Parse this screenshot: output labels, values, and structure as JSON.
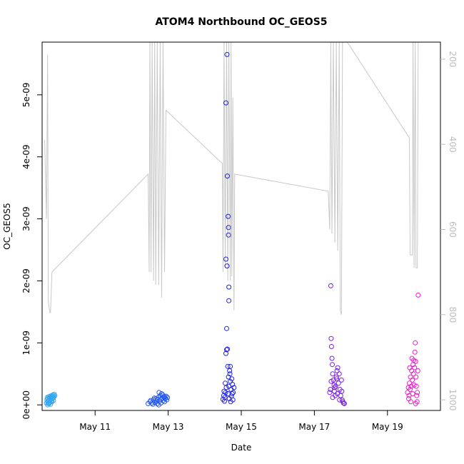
{
  "chart_data": {
    "type": "scatter",
    "title": "ATOM4 Northbound OC_GEOS5",
    "xlabel": "Date",
    "ylabel": "OC_GEOS5",
    "xlim": [
      9.55,
      20.45
    ],
    "ylim": [
      -9e-11,
      5.85e-09
    ],
    "right_ylim": [
      1025,
      160
    ],
    "x_ticks": [
      {
        "value": 11,
        "label": "May 11"
      },
      {
        "value": 13,
        "label": "May 13"
      },
      {
        "value": 15,
        "label": "May 15"
      },
      {
        "value": 17,
        "label": "May 17"
      },
      {
        "value": 19,
        "label": "May 19"
      }
    ],
    "y_ticks": [
      {
        "value": 0,
        "label": "0e+00"
      },
      {
        "value": 1e-09,
        "label": "1e-09"
      },
      {
        "value": 2e-09,
        "label": "2e-09"
      },
      {
        "value": 3e-09,
        "label": "3e-09"
      },
      {
        "value": 4e-09,
        "label": "4e-09"
      },
      {
        "value": 5e-09,
        "label": "5e-09"
      }
    ],
    "right_y_ticks": [
      {
        "value": 200,
        "label": "200"
      },
      {
        "value": 400,
        "label": "400"
      },
      {
        "value": 600,
        "label": "600"
      },
      {
        "value": 800,
        "label": "800"
      },
      {
        "value": 1000,
        "label": "1000"
      }
    ],
    "grid": false,
    "colors": {
      "flight1": "#33a6ee",
      "flight2": "#1f55f5",
      "flight3": "#2020ea",
      "flight4": "#7a1ee8",
      "flight5": "#ee1ec8",
      "pressure": "#c8c8c8"
    },
    "series": [
      {
        "color": "flight1",
        "points": [
          [
            9.67,
            3e-11
          ],
          [
            9.68,
            8e-11
          ],
          [
            9.69,
            1.2e-10
          ],
          [
            9.7,
            5e-11
          ],
          [
            9.71,
            1e-10
          ],
          [
            9.72,
            2e-11
          ],
          [
            9.73,
            1.3e-10
          ],
          [
            9.74,
            7e-11
          ],
          [
            9.75,
            1.1e-10
          ],
          [
            9.76,
            4e-11
          ],
          [
            9.77,
            1.4e-10
          ],
          [
            9.78,
            9e-11
          ],
          [
            9.79,
            1.2e-10
          ],
          [
            9.8,
            6e-11
          ],
          [
            9.81,
            1.5e-10
          ],
          [
            9.82,
            1e-10
          ],
          [
            9.83,
            1.3e-10
          ],
          [
            9.84,
            1.6e-10
          ],
          [
            9.85,
            1.1e-10
          ],
          [
            9.86,
            7e-11
          ],
          [
            9.87,
            1.4e-10
          ],
          [
            9.88,
            1.7e-10
          ],
          [
            9.7,
            0.0
          ],
          [
            9.74,
            2e-11
          ],
          [
            9.78,
            1e-11
          ],
          [
            9.82,
            5e-11
          ],
          [
            9.86,
            1.2e-10
          ],
          [
            9.9,
            1.5e-10
          ]
        ]
      },
      {
        "color": "flight2",
        "points": [
          [
            12.45,
            2e-11
          ],
          [
            12.5,
            5e-11
          ],
          [
            12.55,
            3e-11
          ],
          [
            12.6,
            8e-11
          ],
          [
            12.63,
            4e-11
          ],
          [
            12.66,
            1e-10
          ],
          [
            12.7,
            2e-11
          ],
          [
            12.73,
            1.2e-10
          ],
          [
            12.76,
            6e-11
          ],
          [
            12.78,
            1.5e-10
          ],
          [
            12.8,
            9e-11
          ],
          [
            12.82,
            1.8e-10
          ],
          [
            12.84,
            1.1e-10
          ],
          [
            12.86,
            7e-11
          ],
          [
            12.88,
            1.3e-10
          ],
          [
            12.9,
            5e-11
          ],
          [
            12.92,
            1e-10
          ],
          [
            12.94,
            1.4e-10
          ],
          [
            12.96,
            8e-11
          ],
          [
            12.98,
            1.2e-10
          ],
          [
            12.52,
            7e-11
          ],
          [
            12.58,
            1e-11
          ],
          [
            12.68,
            6e-11
          ],
          [
            12.74,
            0.0
          ],
          [
            12.8,
            3e-11
          ],
          [
            12.85,
            1.6e-10
          ],
          [
            12.75,
            2e-10
          ],
          [
            12.9,
            1.3e-10
          ],
          [
            12.7,
            9e-11
          ],
          [
            12.62,
            1.1e-10
          ]
        ]
      },
      {
        "color": "flight3",
        "points": [
          [
            14.5,
            9e-11
          ],
          [
            14.52,
            1.5e-10
          ],
          [
            14.54,
            6e-11
          ],
          [
            14.55,
            1.2e-10
          ],
          [
            14.57,
            2e-10
          ],
          [
            14.58,
            8.3e-10
          ],
          [
            14.6,
            8.9e-10
          ],
          [
            14.62,
            9e-10
          ],
          [
            14.6,
            1.23e-09
          ],
          [
            14.63,
            6.2e-10
          ],
          [
            14.65,
            4.5e-10
          ],
          [
            14.66,
            3e-10
          ],
          [
            14.68,
            5.5e-10
          ],
          [
            14.7,
            6.2e-10
          ],
          [
            14.7,
            3.8e-10
          ],
          [
            14.72,
            2.5e-10
          ],
          [
            14.74,
            4.2e-10
          ],
          [
            14.75,
            1.8e-10
          ],
          [
            14.76,
            3.3e-10
          ],
          [
            14.78,
            2e-10
          ],
          [
            14.8,
            2.8e-10
          ],
          [
            14.56,
            3.5e-10
          ],
          [
            14.59,
            2.8e-10
          ],
          [
            14.64,
            1.8e-10
          ],
          [
            14.67,
            1e-10
          ],
          [
            14.71,
            5e-11
          ],
          [
            14.73,
            1.4e-10
          ],
          [
            14.77,
            8e-11
          ],
          [
            14.58,
            4.87e-09
          ],
          [
            14.61,
            5.65e-09
          ],
          [
            14.62,
            3.69e-09
          ],
          [
            14.64,
            3.04e-09
          ],
          [
            14.65,
            2.86e-09
          ],
          [
            14.65,
            2.74e-09
          ],
          [
            14.58,
            2.35e-09
          ],
          [
            14.61,
            2.24e-09
          ],
          [
            14.66,
            1.9e-09
          ],
          [
            14.66,
            1.68e-09
          ],
          [
            14.53,
            2.2e-10
          ],
          [
            14.69,
            5e-10
          ]
        ]
      },
      {
        "color": "flight4",
        "points": [
          [
            17.42,
            2e-10
          ],
          [
            17.44,
            2.5e-10
          ],
          [
            17.45,
            1.92e-09
          ],
          [
            17.46,
            1.07e-09
          ],
          [
            17.47,
            9.4e-10
          ],
          [
            17.48,
            7.5e-10
          ],
          [
            17.49,
            6.5e-10
          ],
          [
            17.5,
            5e-10
          ],
          [
            17.52,
            4e-10
          ],
          [
            17.54,
            3.2e-10
          ],
          [
            17.55,
            2.2e-10
          ],
          [
            17.57,
            1.5e-10
          ],
          [
            17.58,
            3e-10
          ],
          [
            17.6,
            4.5e-10
          ],
          [
            17.62,
            5.5e-10
          ],
          [
            17.64,
            6e-10
          ],
          [
            17.66,
            3.5e-10
          ],
          [
            17.68,
            5e-10
          ],
          [
            17.7,
            2.5e-10
          ],
          [
            17.72,
            1.5e-10
          ],
          [
            17.74,
            4e-10
          ],
          [
            17.76,
            8e-11
          ],
          [
            17.78,
            5e-11
          ],
          [
            17.8,
            3e-11
          ],
          [
            17.82,
            2e-11
          ],
          [
            17.5,
            1.2e-10
          ],
          [
            17.56,
            2.8e-10
          ],
          [
            17.63,
            1.8e-10
          ],
          [
            17.69,
            8e-11
          ],
          [
            17.75,
            2.2e-10
          ],
          [
            17.46,
            3.8e-10
          ],
          [
            17.61,
            4.2e-10
          ]
        ]
      },
      {
        "color": "flight5",
        "points": [
          [
            19.55,
            2e-10
          ],
          [
            19.57,
            2.8e-10
          ],
          [
            19.59,
            1.5e-10
          ],
          [
            19.6,
            3.5e-10
          ],
          [
            19.62,
            2.5e-10
          ],
          [
            19.63,
            4.5e-10
          ],
          [
            19.65,
            3e-10
          ],
          [
            19.66,
            5.5e-10
          ],
          [
            19.68,
            4e-10
          ],
          [
            19.7,
            6.5e-10
          ],
          [
            19.71,
            5e-10
          ],
          [
            19.72,
            7.2e-10
          ],
          [
            19.74,
            6e-10
          ],
          [
            19.75,
            8.5e-10
          ],
          [
            19.76,
            1e-09
          ],
          [
            19.77,
            7e-10
          ],
          [
            19.78,
            4.5e-10
          ],
          [
            19.79,
            3e-10
          ],
          [
            19.8,
            1.5e-10
          ],
          [
            19.81,
            5e-11
          ],
          [
            19.82,
            2e-10
          ],
          [
            19.83,
            5.5e-10
          ],
          [
            19.84,
            1.77e-09
          ],
          [
            19.58,
            1e-10
          ],
          [
            19.64,
            5e-11
          ],
          [
            19.69,
            1.8e-10
          ],
          [
            19.73,
            3.2e-10
          ],
          [
            19.77,
            2e-11
          ],
          [
            19.61,
            6e-10
          ],
          [
            19.67,
            7.5e-10
          ]
        ]
      }
    ],
    "pressure_series": {
      "color": "pressure",
      "points": [
        [
          9.62,
          390
        ],
        [
          9.67,
          575
        ],
        [
          9.7,
          190
        ],
        [
          9.72,
          770
        ],
        [
          9.76,
          795
        ],
        [
          9.78,
          795
        ],
        [
          9.82,
          700
        ],
        [
          12.45,
          470
        ],
        [
          12.48,
          700
        ],
        [
          12.5,
          160
        ],
        [
          12.53,
          700
        ],
        [
          12.56,
          160
        ],
        [
          12.6,
          720
        ],
        [
          12.63,
          160
        ],
        [
          12.66,
          730
        ],
        [
          12.7,
          160
        ],
        [
          12.74,
          730
        ],
        [
          12.78,
          160
        ],
        [
          12.82,
          760
        ],
        [
          12.86,
          160
        ],
        [
          12.9,
          700
        ],
        [
          12.94,
          320
        ],
        [
          14.48,
          445
        ],
        [
          14.5,
          700
        ],
        [
          14.53,
          160
        ],
        [
          14.56,
          690
        ],
        [
          14.6,
          160
        ],
        [
          14.63,
          720
        ],
        [
          14.66,
          160
        ],
        [
          14.7,
          720
        ],
        [
          14.72,
          160
        ],
        [
          14.74,
          710
        ],
        [
          14.77,
          290
        ],
        [
          14.8,
          790
        ],
        [
          14.82,
          470
        ],
        [
          17.38,
          510
        ],
        [
          17.42,
          600
        ],
        [
          17.45,
          160
        ],
        [
          17.48,
          610
        ],
        [
          17.52,
          160
        ],
        [
          17.56,
          630
        ],
        [
          17.6,
          160
        ],
        [
          17.64,
          650
        ],
        [
          17.68,
          160
        ],
        [
          17.71,
          790
        ],
        [
          17.74,
          800
        ],
        [
          17.77,
          160
        ],
        [
          17.9,
          130
        ],
        [
          19.6,
          385
        ],
        [
          19.62,
          660
        ],
        [
          19.68,
          660
        ],
        [
          19.7,
          160
        ],
        [
          19.73,
          690
        ],
        [
          19.76,
          160
        ],
        [
          19.78,
          690
        ],
        [
          19.82,
          690
        ],
        [
          19.84,
          160
        ]
      ]
    }
  }
}
